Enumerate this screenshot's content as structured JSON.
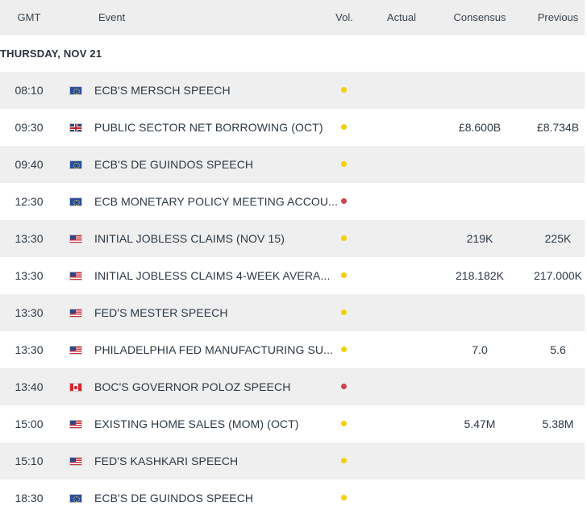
{
  "header": {
    "gmt": "GMT",
    "event": "Event",
    "vol": "Vol.",
    "actual": "Actual",
    "consensus": "Consensus",
    "previous": "Previous"
  },
  "day_label": "THURSDAY, NOV 21",
  "colors": {
    "medium": "#f4d000",
    "high": "#c8474f"
  },
  "rows": [
    {
      "time": "08:10",
      "flag": "eu-flag-icon",
      "event": "ECB'S MERSCH SPEECH",
      "vol": "medium",
      "actual": "",
      "consensus": "",
      "previous": ""
    },
    {
      "time": "09:30",
      "flag": "gb-flag-icon",
      "event": "PUBLIC SECTOR NET BORROWING (OCT)",
      "vol": "medium",
      "actual": "",
      "consensus": "£8.600B",
      "previous": "£8.734B"
    },
    {
      "time": "09:40",
      "flag": "eu-flag-icon",
      "event": "ECB'S DE GUINDOS SPEECH",
      "vol": "medium",
      "actual": "",
      "consensus": "",
      "previous": ""
    },
    {
      "time": "12:30",
      "flag": "eu-flag-icon",
      "event": "ECB MONETARY POLICY MEETING ACCOU...",
      "vol": "high",
      "actual": "",
      "consensus": "",
      "previous": ""
    },
    {
      "time": "13:30",
      "flag": "us-flag-icon",
      "event": "INITIAL JOBLESS CLAIMS (NOV 15)",
      "vol": "medium",
      "actual": "",
      "consensus": "219K",
      "previous": "225K"
    },
    {
      "time": "13:30",
      "flag": "us-flag-icon",
      "event": "INITIAL JOBLESS CLAIMS 4-WEEK AVERA...",
      "vol": "medium",
      "actual": "",
      "consensus": "218.182K",
      "previous": "217.000K"
    },
    {
      "time": "13:30",
      "flag": "us-flag-icon",
      "event": "FED'S MESTER SPEECH",
      "vol": "medium",
      "actual": "",
      "consensus": "",
      "previous": ""
    },
    {
      "time": "13:30",
      "flag": "us-flag-icon",
      "event": "PHILADELPHIA FED MANUFACTURING SU...",
      "vol": "medium",
      "actual": "",
      "consensus": "7.0",
      "previous": "5.6"
    },
    {
      "time": "13:40",
      "flag": "ca-flag-icon",
      "event": "BOC'S GOVERNOR POLOZ SPEECH",
      "vol": "high",
      "actual": "",
      "consensus": "",
      "previous": ""
    },
    {
      "time": "15:00",
      "flag": "us-flag-icon",
      "event": "EXISTING HOME SALES (MOM) (OCT)",
      "vol": "medium",
      "actual": "",
      "consensus": "5.47M",
      "previous": "5.38M"
    },
    {
      "time": "15:10",
      "flag": "us-flag-icon",
      "event": "FED'S KASHKARI SPEECH",
      "vol": "medium",
      "actual": "",
      "consensus": "",
      "previous": ""
    },
    {
      "time": "18:30",
      "flag": "eu-flag-icon",
      "event": "ECB'S DE GUINDOS SPEECH",
      "vol": "medium",
      "actual": "",
      "consensus": "",
      "previous": ""
    }
  ]
}
